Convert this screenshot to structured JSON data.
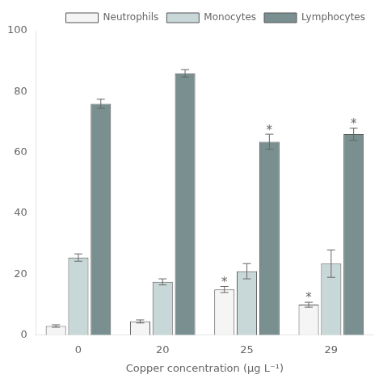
{
  "chart_data": {
    "type": "bar",
    "categories": [
      "0",
      "20",
      "25",
      "29"
    ],
    "series": [
      {
        "name": "Neutrophils",
        "color": "#f5f5f5",
        "edgecolor": "#555555",
        "values": [
          3.0,
          4.5,
          15.0,
          10.0
        ],
        "errors": [
          0.4,
          0.5,
          1.0,
          0.8
        ]
      },
      {
        "name": "Monocytes",
        "color": "#c8d8d8",
        "edgecolor": "#555555",
        "values": [
          25.5,
          17.5,
          21.0,
          23.5
        ],
        "errors": [
          1.2,
          1.0,
          2.5,
          4.5
        ]
      },
      {
        "name": "Lymphocytes",
        "color": "#7a9090",
        "edgecolor": "#555555",
        "values": [
          76.0,
          86.0,
          63.5,
          66.0
        ],
        "errors": [
          1.5,
          1.2,
          2.5,
          2.0
        ]
      }
    ],
    "xlabel": "Copper concentration (μg L⁻¹)",
    "ylim": [
      0,
      100
    ],
    "yticks": [
      0,
      20,
      40,
      60,
      80,
      100
    ],
    "grid": false,
    "legend": "upper right",
    "annotations": [
      {
        "text": "*",
        "category": "25",
        "series": "Neutrophils"
      },
      {
        "text": "*",
        "category": "25",
        "series": "Lymphocytes"
      },
      {
        "text": "*",
        "category": "29",
        "series": "Neutrophils"
      },
      {
        "text": "*",
        "category": "29",
        "series": "Lymphocytes"
      }
    ]
  }
}
